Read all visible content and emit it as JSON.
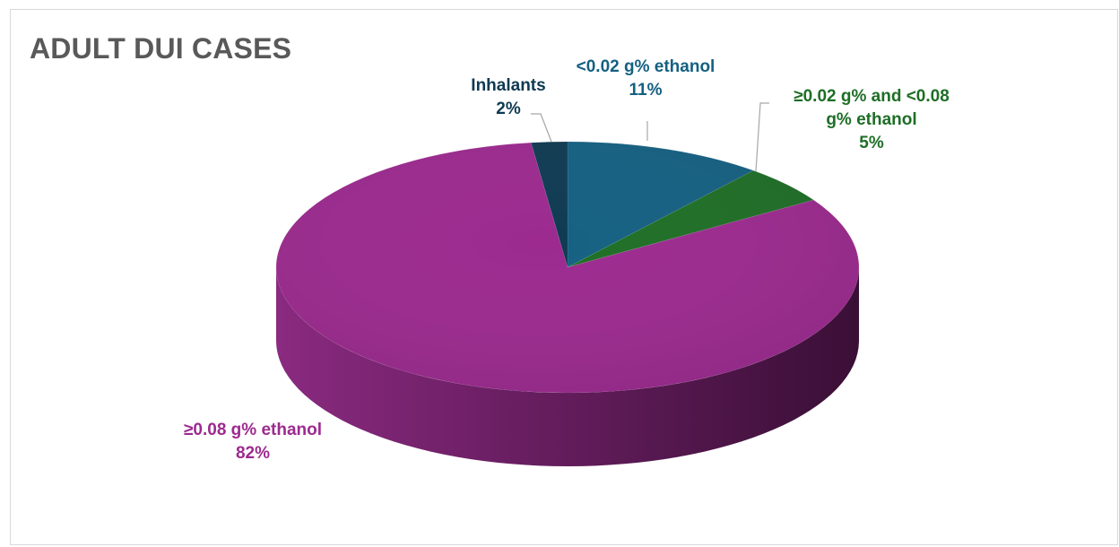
{
  "chart_data": {
    "type": "pie",
    "title": "ADULT DUI CASES",
    "categories": [
      "<0.02 g% ethanol",
      "≥0.02 g%  and <0.08 g% ethanol",
      "≥0.08 g% ethanol",
      "Inhalants"
    ],
    "values": [
      11,
      5,
      82,
      2
    ],
    "value_labels": [
      "11%",
      "5%",
      "82%",
      "2%"
    ],
    "label_lines": [
      [
        "<0.02 g% ethanol"
      ],
      [
        "≥0.02 g%  and <0.08",
        "g% ethanol"
      ],
      [
        "≥0.08 g% ethanol"
      ],
      [
        "Inhalants"
      ]
    ],
    "colors": [
      "#156082",
      "#1e6e26",
      "#9c2a8f",
      "#0e3a52"
    ],
    "label_colors": [
      "#156082",
      "#1e6e26",
      "#9c2a8f",
      "#0e3a52"
    ],
    "style": "3d",
    "legend": "none"
  }
}
